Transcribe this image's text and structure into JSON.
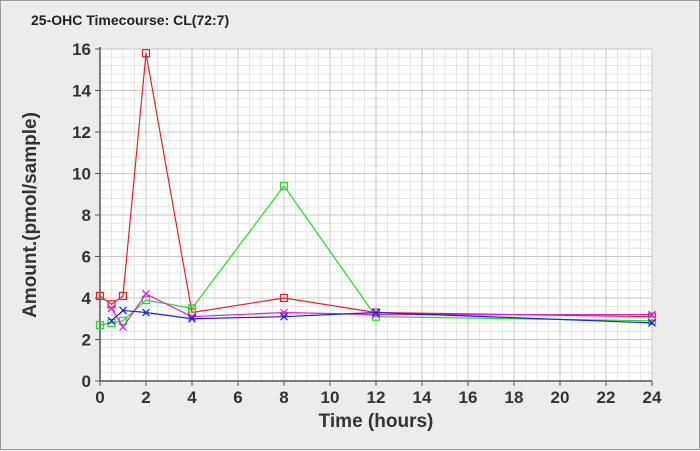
{
  "chart_data": {
    "type": "line",
    "title": "25-OHC Timecourse: CL(72:7)",
    "xlabel": "Time (hours)",
    "ylabel": "Amount.(pmol/sample)",
    "xlim": [
      0,
      24
    ],
    "ylim": [
      0,
      16
    ],
    "xticks": [
      0,
      2,
      4,
      6,
      8,
      10,
      12,
      14,
      16,
      18,
      20,
      22,
      24
    ],
    "yticks": [
      0,
      2,
      4,
      6,
      8,
      10,
      12,
      14,
      16
    ],
    "grid": true,
    "legend": "none",
    "series": [
      {
        "color": "#e8202a",
        "marker": "square",
        "points": [
          [
            0,
            4.1
          ],
          [
            0.5,
            3.7
          ],
          [
            1,
            4.1
          ],
          [
            2,
            15.8
          ],
          [
            4,
            3.3
          ],
          [
            8,
            4.0
          ],
          [
            12,
            3.3
          ],
          [
            24,
            3.1
          ]
        ]
      },
      {
        "color": "#22dd22",
        "marker": "square",
        "points": [
          [
            0,
            2.7
          ],
          [
            0.5,
            2.8
          ],
          [
            1,
            2.9
          ],
          [
            2,
            3.9
          ],
          [
            4,
            3.5
          ],
          [
            8,
            9.4
          ],
          [
            12,
            3.1
          ],
          [
            24,
            2.9
          ]
        ]
      },
      {
        "color": "#e020e0",
        "marker": "x",
        "points": [
          [
            0.5,
            3.5
          ],
          [
            1,
            2.6
          ],
          [
            2,
            4.2
          ],
          [
            4,
            3.1
          ],
          [
            8,
            3.3
          ],
          [
            12,
            3.2
          ],
          [
            24,
            3.2
          ]
        ]
      },
      {
        "color": "#2020dd",
        "marker": "x",
        "points": [
          [
            0.5,
            2.9
          ],
          [
            1,
            3.4
          ],
          [
            2,
            3.3
          ],
          [
            4,
            3.0
          ],
          [
            8,
            3.1
          ],
          [
            12,
            3.3
          ],
          [
            24,
            2.8
          ]
        ]
      }
    ]
  }
}
